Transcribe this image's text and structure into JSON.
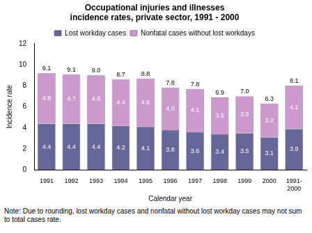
{
  "chart_data": {
    "type": "bar",
    "title": [
      "Occupational injuries and illnesses",
      "incidence rates, private sector, 1991 - 2000"
    ],
    "x_label": "Calendar year",
    "y_label": "Incidence rate",
    "categories": [
      "1991",
      "1992",
      "1993",
      "1994",
      "1995",
      "1996",
      "1997",
      "1998",
      "1999",
      "2000",
      [
        "1991-",
        "2000"
      ]
    ],
    "series": [
      {
        "name": "Lost workday cases",
        "color": "#666699",
        "values": [
          4.4,
          4.4,
          4.4,
          4.2,
          4.1,
          3.8,
          3.6,
          3.4,
          3.5,
          3.1,
          3.9
        ],
        "value_labels": [
          "4.4",
          "4.4",
          "4.4",
          "4.2",
          "4.1",
          "3.8",
          "3.6",
          "3.4",
          "3.5",
          "3.1",
          "3.9"
        ]
      },
      {
        "name": "Nonfatal cases without lost workdays",
        "color": "#cc99cc",
        "values": [
          4.8,
          4.7,
          4.6,
          4.4,
          4.6,
          4.0,
          4.1,
          3.5,
          3.5,
          3.2,
          4.1
        ],
        "value_labels": [
          "4.8",
          "4.7",
          "4.6",
          "4.4",
          "4.6",
          "4.0",
          "4.1",
          "3.5",
          "3.5",
          "3.2",
          "4.1"
        ]
      }
    ],
    "totals": {
      "values": [
        9.1,
        9.1,
        9.0,
        8.7,
        8.8,
        7.8,
        7.8,
        6.9,
        7.0,
        6.3,
        8.1
      ],
      "value_labels": [
        "9.1",
        "9.1",
        "9.0",
        "8.7",
        "8.8",
        "7.8",
        "7.8",
        "6.9",
        "7.0",
        "6.3",
        "8.1"
      ]
    },
    "ylim": [
      0,
      12
    ],
    "yticks": [
      0,
      2,
      4,
      6,
      8,
      10,
      12
    ],
    "stacked": true,
    "data_labels": true,
    "grid": false,
    "legend": "top",
    "note": "Note: Due to rounding, lost workday cases and nonfatal without lost workday cases may not sum to total cases rate."
  }
}
